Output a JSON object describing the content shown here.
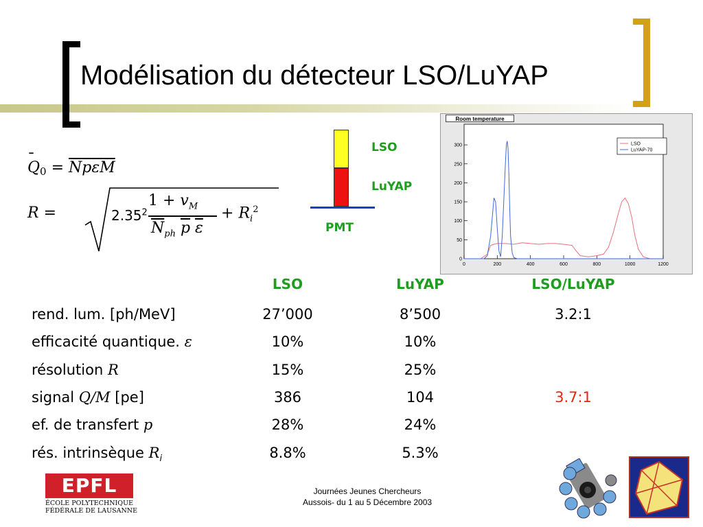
{
  "slide": {
    "title": "Modélisation du détecteur LSO/LuYAP"
  },
  "formulas": {
    "q0": "Q̄₀ = N̄ p̄ ε̄ M̄",
    "r_lhs": "R =",
    "r_coef": "2.35²",
    "r_num": "1 + v_M",
    "r_den": "N̄_ph p̄ ε̄",
    "r_tail": "+ R_i²"
  },
  "diagram": {
    "lso_label": "LSO",
    "luyap_label": "LuYAP",
    "pmt_label": "PMT"
  },
  "histogram": {
    "title": "Room temperature",
    "legend": [
      "LSO",
      "LuYAP-70"
    ],
    "colors": {
      "lso": "#e8707a",
      "luyap": "#4466dd"
    }
  },
  "chart_data": {
    "type": "line",
    "title": "Room temperature",
    "xlabel": "",
    "ylabel": "",
    "xlim": [
      0,
      1200
    ],
    "ylim": [
      0,
      340
    ],
    "x_ticks": [
      "0",
      "200",
      "400",
      "600",
      "800",
      "1000",
      "1200"
    ],
    "y_ticks": [
      "0",
      "50",
      "100",
      "150",
      "200",
      "250",
      "300"
    ],
    "legend_position": "top-right",
    "series": [
      {
        "name": "LSO",
        "x": [
          0,
          100,
          140,
          160,
          180,
          200,
          250,
          300,
          350,
          400,
          450,
          500,
          550,
          600,
          650,
          680,
          700,
          750,
          800,
          840,
          870,
          900,
          930,
          950,
          970,
          990,
          1010,
          1030,
          1050,
          1080,
          1120,
          1200
        ],
        "y": [
          0,
          0,
          12,
          35,
          38,
          40,
          40,
          38,
          42,
          40,
          38,
          40,
          40,
          38,
          35,
          18,
          8,
          5,
          8,
          12,
          30,
          70,
          120,
          150,
          160,
          145,
          110,
          60,
          25,
          5,
          0,
          0
        ]
      },
      {
        "name": "LuYAP-70",
        "x": [
          0,
          120,
          140,
          160,
          170,
          180,
          190,
          200,
          210,
          220,
          230,
          240,
          250,
          255,
          260,
          265,
          270,
          275,
          280,
          290,
          300,
          320,
          1200
        ],
        "y": [
          0,
          0,
          8,
          60,
          110,
          160,
          150,
          80,
          20,
          5,
          60,
          160,
          260,
          300,
          310,
          290,
          220,
          130,
          60,
          15,
          3,
          0,
          0
        ]
      }
    ]
  },
  "table": {
    "headers": [
      "LSO",
      "LuYAP",
      "LSO/LuYAP"
    ],
    "rows": [
      {
        "label": "rend. lum. [ph/MeV]",
        "lso": "27’000",
        "luyap": "8’500",
        "ratio": "3.2:1"
      },
      {
        "label": "efficacité quantique. ",
        "label_sym": "ε",
        "lso": "10%",
        "luyap": "10%",
        "ratio": ""
      },
      {
        "label": "résolution ",
        "label_sym": "R",
        "lso": "15%",
        "luyap": "25%",
        "ratio": ""
      },
      {
        "label": "signal ",
        "label_sym": "Q/M",
        "label_tail": " [pe]",
        "lso": "386",
        "luyap": "104",
        "ratio": "3.7:1"
      },
      {
        "label": "ef. de transfert ",
        "label_sym": "p",
        "lso": "28%",
        "luyap": "24%",
        "ratio": ""
      },
      {
        "label": "rés. intrinsèque ",
        "label_sym": "R",
        "label_sub": "i",
        "lso": "8.8%",
        "luyap": "5.3%",
        "ratio": ""
      }
    ],
    "accent_color": "#e8230f"
  },
  "footer": {
    "line1": "Journées Jeunes Chercheurs",
    "line2": "Aussois- du 1 au 5 Décembre 2003",
    "logo_text": "EPFL",
    "logo_line1": "ÉCOLE POLYTECHNIQUE",
    "logo_line2": "FÉDÉRALE DE LAUSANNE"
  }
}
